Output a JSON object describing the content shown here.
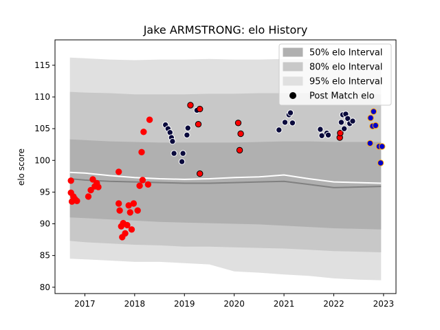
{
  "chart_data": {
    "type": "scatter",
    "title": "Jake ARMSTRONG: elo History",
    "xlabel": "",
    "ylabel": "elo score",
    "xlim": [
      2016.4,
      2023.25
    ],
    "ylim": [
      79,
      119
    ],
    "x_ticks": [
      2017,
      2018,
      2019,
      2020,
      2021,
      2022,
      2023
    ],
    "y_ticks": [
      80,
      85,
      90,
      95,
      100,
      105,
      110,
      115
    ],
    "grid": false,
    "legend_position": "top-right",
    "legend": [
      {
        "label": "50% elo Interval",
        "kind": "patch",
        "color": "#b0b0b0"
      },
      {
        "label": "80% elo Interval",
        "kind": "patch",
        "color": "#c8c8c8"
      },
      {
        "label": "95% elo Interval",
        "kind": "patch",
        "color": "#e0e0e0"
      },
      {
        "label": "Post Match elo",
        "kind": "marker",
        "color": "#000000"
      }
    ],
    "intervals": {
      "x": [
        2016.7,
        2017.0,
        2017.5,
        2018.0,
        2018.5,
        2019.0,
        2019.5,
        2020.0,
        2020.5,
        2021.0,
        2021.5,
        2022.0,
        2022.5,
        2022.95
      ],
      "p95_upper": [
        116.2,
        116.1,
        115.9,
        115.8,
        115.9,
        115.9,
        116.0,
        115.9,
        115.9,
        116.0,
        116.0,
        115.8,
        115.8,
        115.8
      ],
      "p95_lower": [
        84.5,
        84.4,
        84.2,
        84.0,
        84.0,
        83.8,
        83.6,
        82.5,
        82.3,
        82.0,
        81.8,
        81.4,
        81.2,
        81.1
      ],
      "p80_upper": [
        110.8,
        110.7,
        110.6,
        110.4,
        110.4,
        110.4,
        110.5,
        110.5,
        110.6,
        110.6,
        110.6,
        110.5,
        110.5,
        110.4
      ],
      "p80_lower": [
        87.3,
        87.1,
        86.9,
        86.7,
        86.6,
        86.4,
        86.4,
        86.3,
        86.2,
        86.1,
        85.9,
        85.7,
        85.6,
        85.5
      ],
      "p50_upper": [
        103.3,
        103.2,
        103.0,
        102.9,
        102.8,
        102.8,
        102.8,
        102.8,
        102.9,
        103.0,
        103.0,
        102.9,
        102.9,
        102.9
      ],
      "p50_lower": [
        91.0,
        90.9,
        90.7,
        90.5,
        90.3,
        90.2,
        90.1,
        90.0,
        89.9,
        89.7,
        89.5,
        89.3,
        89.2,
        89.1
      ]
    },
    "series": [
      {
        "line": "median",
        "color": "#808080",
        "x": [
          2016.7,
          2017.0,
          2017.5,
          2018.0,
          2018.5,
          2019.0,
          2019.5,
          2020.0,
          2020.5,
          2021.0,
          2021.5,
          2022.0,
          2022.5,
          2022.95
        ],
        "values": [
          97.1,
          96.9,
          96.7,
          96.6,
          96.5,
          96.4,
          96.4,
          96.5,
          96.6,
          96.7,
          96.2,
          95.7,
          95.8,
          95.9
        ]
      },
      {
        "line": "mean",
        "color": "#ffffff",
        "x": [
          2016.7,
          2017.0,
          2017.5,
          2018.0,
          2018.5,
          2019.0,
          2019.5,
          2020.0,
          2020.5,
          2021.0,
          2021.5,
          2022.0,
          2022.5,
          2022.95
        ],
        "values": [
          98.1,
          98.0,
          97.6,
          97.3,
          97.1,
          97.0,
          97.1,
          97.3,
          97.4,
          97.7,
          97.1,
          96.6,
          96.5,
          96.4
        ]
      }
    ],
    "points": [
      {
        "x": 2016.72,
        "y": 96.8,
        "color": "#ff0000",
        "edge": "#ff0000"
      },
      {
        "x": 2016.72,
        "y": 94.9,
        "color": "#ff0000",
        "edge": "#ff0000"
      },
      {
        "x": 2016.74,
        "y": 93.5,
        "color": "#ff0000",
        "edge": "#ff0000"
      },
      {
        "x": 2016.77,
        "y": 94.3,
        "color": "#ff0000",
        "edge": "#ff0000"
      },
      {
        "x": 2016.8,
        "y": 93.9,
        "color": "#ff0000",
        "edge": "#ff0000"
      },
      {
        "x": 2016.84,
        "y": 93.6,
        "color": "#ff0000",
        "edge": "#ff0000"
      },
      {
        "x": 2017.07,
        "y": 94.3,
        "color": "#ff0000",
        "edge": "#ff0000"
      },
      {
        "x": 2017.12,
        "y": 95.3,
        "color": "#ff0000",
        "edge": "#ff0000"
      },
      {
        "x": 2017.16,
        "y": 97.0,
        "color": "#ff0000",
        "edge": "#ff0000"
      },
      {
        "x": 2017.2,
        "y": 95.9,
        "color": "#ff0000",
        "edge": "#ff0000"
      },
      {
        "x": 2017.24,
        "y": 96.4,
        "color": "#ff0000",
        "edge": "#ff0000"
      },
      {
        "x": 2017.27,
        "y": 95.8,
        "color": "#ff0000",
        "edge": "#ff0000"
      },
      {
        "x": 2017.68,
        "y": 98.2,
        "color": "#ff0000",
        "edge": "#ff0000"
      },
      {
        "x": 2017.68,
        "y": 93.2,
        "color": "#ff0000",
        "edge": "#ff0000"
      },
      {
        "x": 2017.7,
        "y": 92.1,
        "color": "#ff0000",
        "edge": "#ff0000"
      },
      {
        "x": 2017.73,
        "y": 89.6,
        "color": "#ff0000",
        "edge": "#ff0000"
      },
      {
        "x": 2017.75,
        "y": 87.9,
        "color": "#ff0000",
        "edge": "#ff0000"
      },
      {
        "x": 2017.77,
        "y": 90.1,
        "color": "#ff0000",
        "edge": "#ff0000"
      },
      {
        "x": 2017.81,
        "y": 88.5,
        "color": "#ff0000",
        "edge": "#ff0000"
      },
      {
        "x": 2017.85,
        "y": 89.8,
        "color": "#ff0000",
        "edge": "#ff0000"
      },
      {
        "x": 2017.88,
        "y": 92.9,
        "color": "#ff0000",
        "edge": "#ff0000"
      },
      {
        "x": 2017.91,
        "y": 91.8,
        "color": "#ff0000",
        "edge": "#ff0000"
      },
      {
        "x": 2017.94,
        "y": 89.1,
        "color": "#ff0000",
        "edge": "#ff0000"
      },
      {
        "x": 2017.98,
        "y": 93.2,
        "color": "#ff0000",
        "edge": "#ff0000"
      },
      {
        "x": 2018.06,
        "y": 92.1,
        "color": "#ff0000",
        "edge": "#ff0000"
      },
      {
        "x": 2018.1,
        "y": 96.0,
        "color": "#ff0000",
        "edge": "#ff0000"
      },
      {
        "x": 2018.14,
        "y": 101.3,
        "color": "#ff0000",
        "edge": "#ff0000"
      },
      {
        "x": 2018.16,
        "y": 96.9,
        "color": "#ff0000",
        "edge": "#ff0000"
      },
      {
        "x": 2018.18,
        "y": 104.5,
        "color": "#ff0000",
        "edge": "#ff0000"
      },
      {
        "x": 2018.27,
        "y": 96.2,
        "color": "#ff0000",
        "edge": "#ff0000"
      },
      {
        "x": 2018.3,
        "y": 106.4,
        "color": "#ff0000",
        "edge": "#ff0000"
      },
      {
        "x": 2018.62,
        "y": 105.6,
        "color": "#0a0a3c",
        "edge": "#ffffff"
      },
      {
        "x": 2018.67,
        "y": 105.0,
        "color": "#0a0a3c",
        "edge": "#ffffff"
      },
      {
        "x": 2018.71,
        "y": 104.4,
        "color": "#0a0a3c",
        "edge": "#ffffff"
      },
      {
        "x": 2018.74,
        "y": 103.6,
        "color": "#0a0a3c",
        "edge": "#ffffff"
      },
      {
        "x": 2018.76,
        "y": 103.0,
        "color": "#0a0a3c",
        "edge": "#ffffff"
      },
      {
        "x": 2018.79,
        "y": 101.1,
        "color": "#0a0a3c",
        "edge": "#ffffff"
      },
      {
        "x": 2018.95,
        "y": 99.8,
        "color": "#0a0a3c",
        "edge": "#ffffff"
      },
      {
        "x": 2018.97,
        "y": 101.1,
        "color": "#0a0a3c",
        "edge": "#ffffff"
      },
      {
        "x": 2019.05,
        "y": 104.0,
        "color": "#0a0a3c",
        "edge": "#ffffff"
      },
      {
        "x": 2019.07,
        "y": 105.1,
        "color": "#0a0a3c",
        "edge": "#ffffff"
      },
      {
        "x": 2019.12,
        "y": 108.7,
        "color": "#ff0000",
        "edge": "#000000"
      },
      {
        "x": 2019.25,
        "y": 107.9,
        "color": "#0a0a3c",
        "edge": "#ffffff"
      },
      {
        "x": 2019.28,
        "y": 105.7,
        "color": "#ff0000",
        "edge": "#000000"
      },
      {
        "x": 2019.31,
        "y": 108.1,
        "color": "#ff0000",
        "edge": "#000000"
      },
      {
        "x": 2019.31,
        "y": 97.9,
        "color": "#ff0000",
        "edge": "#000000"
      },
      {
        "x": 2020.08,
        "y": 105.9,
        "color": "#ff0000",
        "edge": "#000000"
      },
      {
        "x": 2020.11,
        "y": 101.6,
        "color": "#ff0000",
        "edge": "#000000"
      },
      {
        "x": 2020.13,
        "y": 104.2,
        "color": "#ff0000",
        "edge": "#000000"
      },
      {
        "x": 2020.9,
        "y": 104.8,
        "color": "#0a0a3c",
        "edge": "#ffffff"
      },
      {
        "x": 2021.02,
        "y": 106.0,
        "color": "#0a0a3c",
        "edge": "#ffffff"
      },
      {
        "x": 2021.1,
        "y": 107.2,
        "color": "#0a0a3c",
        "edge": "#ffffff"
      },
      {
        "x": 2021.13,
        "y": 107.5,
        "color": "#0a0a3c",
        "edge": "#ffffff"
      },
      {
        "x": 2021.17,
        "y": 105.9,
        "color": "#0a0a3c",
        "edge": "#ffffff"
      },
      {
        "x": 2021.73,
        "y": 104.9,
        "color": "#0a0a3c",
        "edge": "#ffffff"
      },
      {
        "x": 2021.76,
        "y": 103.9,
        "color": "#0a0a3c",
        "edge": "#ffffff"
      },
      {
        "x": 2021.86,
        "y": 104.3,
        "color": "#0a0a3c",
        "edge": "#ffffff"
      },
      {
        "x": 2021.89,
        "y": 104.0,
        "color": "#0a0a3c",
        "edge": "#ffffff"
      },
      {
        "x": 2022.12,
        "y": 103.6,
        "color": "#ff0000",
        "edge": "#000000"
      },
      {
        "x": 2022.13,
        "y": 104.3,
        "color": "#ff0000",
        "edge": "#000000"
      },
      {
        "x": 2022.15,
        "y": 106.0,
        "color": "#0a0a3c",
        "edge": "#ffffff"
      },
      {
        "x": 2022.18,
        "y": 107.2,
        "color": "#0a0a3c",
        "edge": "#ffffff"
      },
      {
        "x": 2022.21,
        "y": 105.0,
        "color": "#0a0a3c",
        "edge": "#ffffff"
      },
      {
        "x": 2022.24,
        "y": 107.3,
        "color": "#0a0a3c",
        "edge": "#ffffff"
      },
      {
        "x": 2022.28,
        "y": 106.6,
        "color": "#0a0a3c",
        "edge": "#ffffff"
      },
      {
        "x": 2022.32,
        "y": 105.8,
        "color": "#0a0a3c",
        "edge": "#ffffff"
      },
      {
        "x": 2022.38,
        "y": 106.2,
        "color": "#0a0a3c",
        "edge": "#ffffff"
      },
      {
        "x": 2022.73,
        "y": 102.7,
        "color": "#0000cc",
        "edge": "#ffa500"
      },
      {
        "x": 2022.74,
        "y": 106.7,
        "color": "#0000cc",
        "edge": "#ffa500"
      },
      {
        "x": 2022.78,
        "y": 105.4,
        "color": "#0000cc",
        "edge": "#ffa500"
      },
      {
        "x": 2022.8,
        "y": 107.7,
        "color": "#0000cc",
        "edge": "#ffa500"
      },
      {
        "x": 2022.84,
        "y": 105.5,
        "color": "#0000cc",
        "edge": "#ffa500"
      },
      {
        "x": 2022.91,
        "y": 102.2,
        "color": "#0000cc",
        "edge": "#ffa500"
      },
      {
        "x": 2022.94,
        "y": 99.6,
        "color": "#0000cc",
        "edge": "#ffa500"
      },
      {
        "x": 2022.97,
        "y": 102.2,
        "color": "#0000cc",
        "edge": "#ffa500"
      }
    ]
  }
}
